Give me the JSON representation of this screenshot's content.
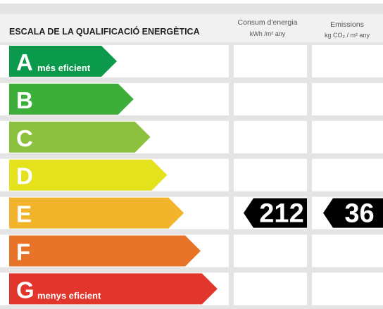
{
  "header": {
    "title": "ESCALA DE LA QUALIFICACIÓ ENERGÈTICA",
    "columns": [
      {
        "title": "Consum d'energia",
        "unit": "kWh /m² any"
      },
      {
        "title": "Emissions",
        "unit": "kg CO₂ / m² any"
      }
    ]
  },
  "rows": [
    {
      "letter": "A",
      "note": "més eficient",
      "color": "#0b9a4b"
    },
    {
      "letter": "B",
      "color": "#3dae3a"
    },
    {
      "letter": "C",
      "color": "#8cc03f"
    },
    {
      "letter": "D",
      "color": "#e4e11d"
    },
    {
      "letter": "E",
      "color": "#f1b42a",
      "consumption": 212,
      "emissions": 36
    },
    {
      "letter": "F",
      "color": "#e8742a"
    },
    {
      "letter": "G",
      "note": "menys eficient",
      "color": "#e2352b"
    }
  ]
}
